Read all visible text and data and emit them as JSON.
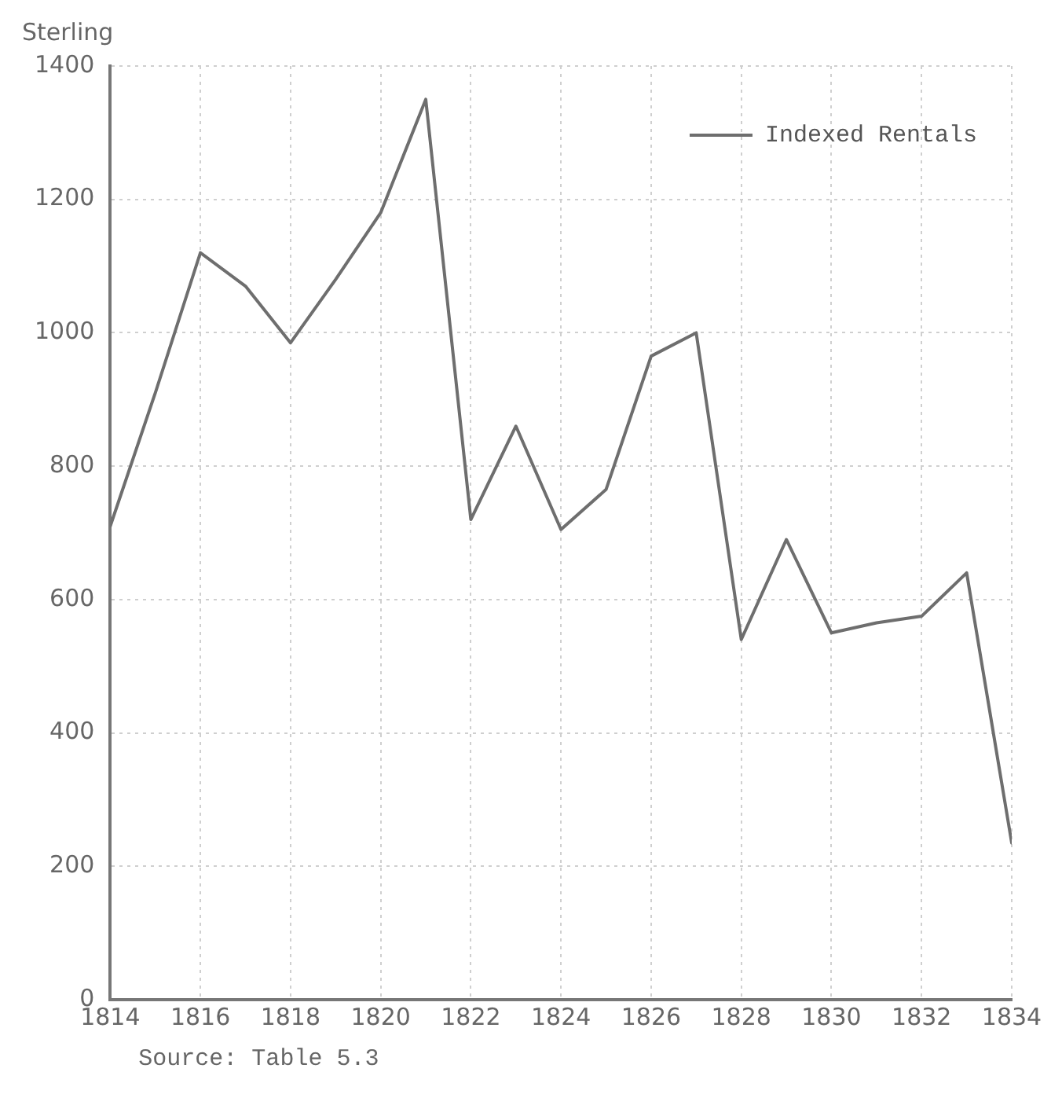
{
  "chart_data": {
    "type": "line",
    "ylabel": "Sterling",
    "annotations": [
      "Source: Table 5.3"
    ],
    "x": [
      1814,
      1815,
      1816,
      1817,
      1818,
      1819,
      1820,
      1821,
      1822,
      1823,
      1824,
      1825,
      1826,
      1827,
      1828,
      1829,
      1830,
      1831,
      1832,
      1833,
      1834
    ],
    "series": [
      {
        "name": "Indexed Rentals",
        "color": "#6e6e6e",
        "values": [
          710,
          910,
          1120,
          1070,
          985,
          1080,
          1180,
          1350,
          720,
          860,
          705,
          765,
          965,
          1000,
          540,
          690,
          550,
          565,
          575,
          640,
          235
        ]
      }
    ],
    "xlim": [
      1814,
      1834
    ],
    "xticks": [
      1814,
      1816,
      1818,
      1820,
      1822,
      1824,
      1826,
      1828,
      1830,
      1832,
      1834
    ],
    "ylim": [
      0,
      1400
    ],
    "yticks": [
      0,
      200,
      400,
      600,
      800,
      1000,
      1200,
      1400
    ],
    "grid": true,
    "legend": "top right",
    "marker": "none",
    "line_style": "solid"
  }
}
